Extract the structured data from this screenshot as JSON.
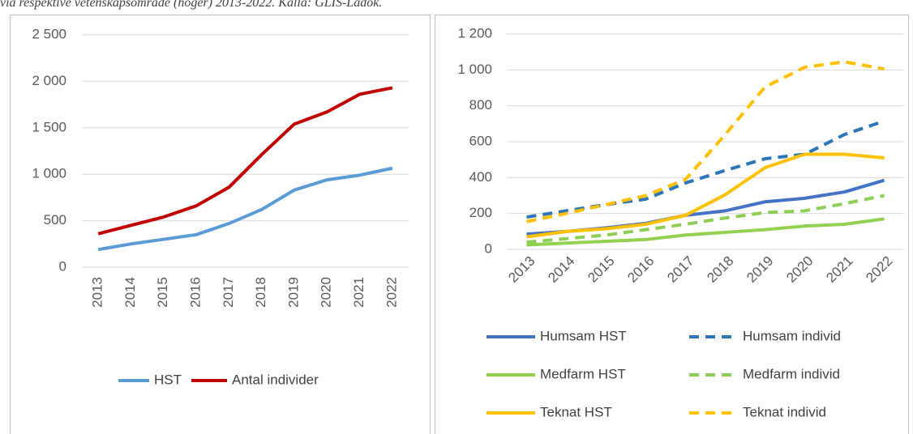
{
  "caption": "via respektive vetenskapsområde (höger) 2013-2022. Källa: GLIS-Ladok.",
  "chart_data": [
    {
      "type": "line",
      "categories": [
        "2013",
        "2014",
        "2015",
        "2016",
        "2017",
        "2018",
        "2019",
        "2020",
        "2021",
        "2022"
      ],
      "ylim": [
        0,
        2500
      ],
      "yticks": [
        0,
        500,
        {
          "value": 1000,
          "label": "1 000"
        },
        {
          "value": 1500,
          "label": "1 500"
        },
        {
          "value": 2000,
          "label": "2 000"
        },
        {
          "value": 2500,
          "label": "2 500"
        }
      ],
      "grid": true,
      "legend": "bottom",
      "series": [
        {
          "name": "HST",
          "color": "#5b9bd5",
          "dashed": false,
          "values": [
            190,
            250,
            300,
            350,
            470,
            620,
            830,
            940,
            990,
            1065
          ]
        },
        {
          "name": "Antal individer",
          "color": "#c00000",
          "dashed": false,
          "values": [
            360,
            450,
            540,
            660,
            860,
            1210,
            1540,
            1670,
            1860,
            1930
          ]
        }
      ]
    },
    {
      "type": "line",
      "categories": [
        "2013",
        "2014",
        "2015",
        "2016",
        "2017",
        "2018",
        "2019",
        "2020",
        "2021",
        "2022"
      ],
      "ylim": [
        0,
        1200
      ],
      "yticks": [
        0,
        200,
        400,
        600,
        800,
        {
          "value": 1000,
          "label": "1 000"
        },
        {
          "value": 1200,
          "label": "1 200"
        }
      ],
      "grid": true,
      "legend": "bottom",
      "series": [
        {
          "name": "Humsam HST",
          "color": "#4472c4",
          "dashed": false,
          "values": [
            85,
            100,
            120,
            145,
            190,
            215,
            265,
            285,
            320,
            385
          ]
        },
        {
          "name": "Humsam individ",
          "color": "#2e75b6",
          "dashed": true,
          "values": [
            180,
            215,
            250,
            280,
            370,
            440,
            505,
            530,
            640,
            715
          ]
        },
        {
          "name": "Medfarm HST",
          "color": "#92d050",
          "dashed": false,
          "values": [
            25,
            35,
            45,
            55,
            80,
            95,
            110,
            130,
            140,
            170
          ]
        },
        {
          "name": "Medfarm individ",
          "color": "#8fce55",
          "dashed": true,
          "values": [
            40,
            60,
            80,
            110,
            140,
            175,
            205,
            215,
            255,
            300
          ]
        },
        {
          "name": "Teknat HST",
          "color": "#ffc000",
          "dashed": false,
          "values": [
            70,
            100,
            115,
            140,
            190,
            305,
            455,
            530,
            530,
            510
          ]
        },
        {
          "name": "Teknat individ",
          "color": "#ffc000",
          "dashed": true,
          "values": [
            155,
            200,
            250,
            300,
            390,
            640,
            905,
            1015,
            1045,
            1005
          ]
        }
      ]
    }
  ]
}
